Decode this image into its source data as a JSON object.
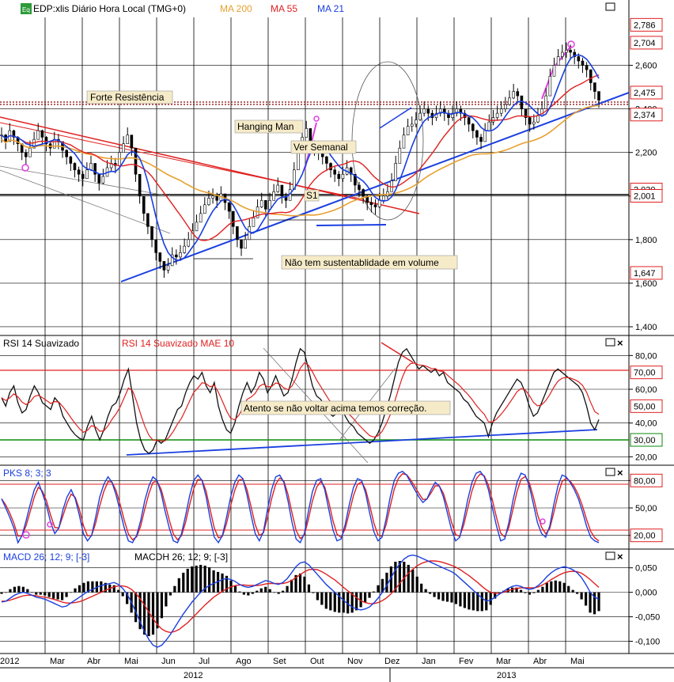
{
  "chart_data": [
    {
      "type": "line",
      "title": "EDP:xlis Diário Hora Local (TMG+0)",
      "badge": "Eq",
      "series": [
        {
          "name": "MA 200",
          "color": "#e8a030"
        },
        {
          "name": "MA 55",
          "color": "#e02020"
        },
        {
          "name": "MA 21",
          "color": "#1a3fe0"
        }
      ],
      "ylim": [
        1.36,
        2.82
      ],
      "y_ticks": [
        {
          "label": "1,400",
          "value": 1.4
        },
        {
          "label": "1,600",
          "value": 1.6
        },
        {
          "label": "1,800",
          "value": 1.8
        },
        {
          "label": "2,000",
          "value": 2.0
        },
        {
          "label": "2,200",
          "value": 2.2
        },
        {
          "label": "2,400",
          "value": 2.4
        },
        {
          "label": "2,600",
          "value": 2.6
        }
      ],
      "level_labels": [
        {
          "label": "2,786",
          "value": 2.786
        },
        {
          "label": "2,704",
          "value": 2.704
        },
        {
          "label": "2,475",
          "value": 2.475
        },
        {
          "label": "2,374",
          "value": 2.374
        },
        {
          "label": "2,030",
          "value": 2.03
        },
        {
          "label": "2,001",
          "value": 2.001
        },
        {
          "label": "1,647",
          "value": 1.647
        }
      ],
      "price": [
        2.28,
        2.25,
        2.3,
        2.27,
        2.24,
        2.2,
        2.18,
        2.22,
        2.26,
        2.3,
        2.27,
        2.24,
        2.22,
        2.26,
        2.25,
        2.21,
        2.18,
        2.15,
        2.12,
        2.1,
        2.08,
        2.12,
        2.15,
        2.1,
        2.06,
        2.09,
        2.13,
        2.15,
        2.14,
        2.2,
        2.24,
        2.28,
        2.22,
        2.1,
        2.0,
        1.92,
        1.86,
        1.8,
        1.74,
        1.7,
        1.66,
        1.68,
        1.73,
        1.72,
        1.74,
        1.77,
        1.8,
        1.84,
        1.88,
        1.92,
        1.96,
        1.99,
        2.0,
        1.98,
        2.01,
        1.97,
        1.93,
        1.86,
        1.8,
        1.76,
        1.8,
        1.86,
        1.9,
        1.95,
        1.98,
        1.94,
        1.98,
        2.02,
        2.05,
        2.0,
        1.98,
        2.03,
        2.12,
        2.2,
        2.27,
        2.31,
        2.25,
        2.22,
        2.2,
        2.18,
        2.15,
        2.12,
        2.1,
        2.08,
        2.1,
        2.13,
        2.1,
        2.05,
        2.03,
        2.0,
        1.97,
        1.96,
        1.95,
        1.98,
        2.0,
        2.02,
        2.07,
        2.15,
        2.22,
        2.28,
        2.32,
        2.33,
        2.35,
        2.38,
        2.4,
        2.38,
        2.36,
        2.38,
        2.4,
        2.38,
        2.36,
        2.38,
        2.4,
        2.38,
        2.36,
        2.33,
        2.3,
        2.27,
        2.25,
        2.3,
        2.34,
        2.36,
        2.38,
        2.4,
        2.42,
        2.45,
        2.48,
        2.46,
        2.4,
        2.36,
        2.33,
        2.34,
        2.37,
        2.4,
        2.46,
        2.55,
        2.6,
        2.64,
        2.66,
        2.67,
        2.66,
        2.64,
        2.62,
        2.6,
        2.58,
        2.52,
        2.48,
        2.44
      ],
      "annotations": [
        {
          "text": "Forte Resistência"
        },
        {
          "text": "Hanging Man"
        },
        {
          "text": "Ver Semanal"
        },
        {
          "text": "S1"
        },
        {
          "text": "Não tem sustentablidade em volume"
        }
      ]
    },
    {
      "type": "line",
      "title": "RSI 14 Suavizado",
      "series": [
        {
          "name": "RSI 14 Suavizado",
          "color": "#111111"
        },
        {
          "name": "RSI 14 Suavizado MAE 10",
          "color": "#e02020"
        }
      ],
      "ylim": [
        15,
        90
      ],
      "y_ticks": [
        {
          "label": "20,00",
          "value": 20
        },
        {
          "label": "40,00",
          "value": 40
        },
        {
          "label": "60,00",
          "value": 60
        },
        {
          "label": "80,00",
          "value": 80
        }
      ],
      "level_labels": [
        {
          "label": "70,00",
          "value": 70,
          "color": "#e02020"
        },
        {
          "label": "50,00",
          "value": 50,
          "color": "#e02020"
        },
        {
          "label": "30,00",
          "value": 30,
          "color": "#0a8a0a"
        }
      ],
      "rsi": [
        55,
        50,
        58,
        62,
        52,
        46,
        48,
        56,
        62,
        58,
        52,
        50,
        48,
        55,
        52,
        44,
        40,
        36,
        33,
        31,
        30,
        38,
        44,
        36,
        30,
        36,
        44,
        50,
        52,
        58,
        66,
        72,
        56,
        40,
        30,
        24,
        22,
        24,
        30,
        28,
        30,
        36,
        42,
        48,
        50,
        58,
        64,
        68,
        66,
        70,
        62,
        58,
        64,
        50,
        42,
        36,
        34,
        40,
        50,
        58,
        64,
        58,
        62,
        70,
        66,
        58,
        62,
        68,
        62,
        56,
        58,
        66,
        76,
        84,
        82,
        72,
        62,
        56,
        54,
        50,
        46,
        44,
        46,
        50,
        44,
        40,
        38,
        34,
        32,
        30,
        28,
        30,
        34,
        40,
        48,
        56,
        66,
        76,
        82,
        84,
        80,
        76,
        72,
        74,
        72,
        70,
        72,
        68,
        70,
        64,
        62,
        60,
        58,
        54,
        52,
        48,
        44,
        42,
        40,
        32,
        40,
        46,
        50,
        54,
        58,
        62,
        66,
        64,
        58,
        50,
        44,
        46,
        52,
        58,
        64,
        70,
        72,
        70,
        68,
        66,
        64,
        62,
        58,
        50,
        40,
        36,
        42
      ]
    },
    {
      "type": "line",
      "title": "PKS 8; 3; 3",
      "series": [
        {
          "name": "PKS 8; 3; 3",
          "color": "#1a3fe0"
        }
      ],
      "ylim": [
        5,
        95
      ],
      "y_ticks": [
        {
          "label": "20,00",
          "value": 20
        },
        {
          "label": "50,00",
          "value": 50
        },
        {
          "label": "80,00",
          "value": 80
        }
      ],
      "level_labels": [
        {
          "label": "80,00",
          "value": 80,
          "color": "#e02020"
        },
        {
          "label": "20,00",
          "value": 20,
          "color": "#e02020"
        }
      ],
      "pks": [
        60,
        50,
        40,
        28,
        12,
        20,
        36,
        54,
        70,
        78,
        66,
        52,
        34,
        22,
        28,
        48,
        62,
        70,
        60,
        42,
        22,
        14,
        20,
        40,
        62,
        76,
        84,
        78,
        64,
        46,
        28,
        14,
        12,
        20,
        36,
        58,
        74,
        84,
        80,
        66,
        46,
        28,
        14,
        12,
        22,
        42,
        64,
        80,
        86,
        80,
        62,
        38,
        18,
        12,
        20,
        40,
        62,
        78,
        86,
        82,
        64,
        42,
        22,
        14,
        24,
        48,
        70,
        84,
        86,
        78,
        58,
        34,
        16,
        12,
        22,
        46,
        68,
        80,
        82,
        70,
        48,
        26,
        14,
        16,
        32,
        54,
        72,
        82,
        80,
        66,
        44,
        24,
        14,
        18,
        38,
        62,
        80,
        88,
        90,
        86,
        78,
        70,
        62,
        56,
        60,
        70,
        78,
        74,
        62,
        44,
        26,
        14,
        18,
        38,
        60,
        78,
        88,
        90,
        84,
        70,
        50,
        30,
        14,
        16,
        34,
        58,
        78,
        88,
        86,
        74,
        54,
        34,
        22,
        18,
        30,
        54,
        74,
        86,
        84,
        78,
        70,
        60,
        46,
        30,
        18,
        14,
        12
      ]
    },
    {
      "type": "line",
      "title": "MACD 26; 12; 9; [-3]",
      "series": [
        {
          "name": "MACD 26; 12; 9; [-3]",
          "color": "#1a3fe0"
        },
        {
          "name": "MACDH 26; 12; 9; [-3]",
          "color": "#111111"
        }
      ],
      "ylim": [
        -0.125,
        0.085
      ],
      "y_ticks": [
        {
          "label": "-0,100",
          "value": -0.1
        },
        {
          "label": "-0,050",
          "value": -0.05
        },
        {
          "label": "0,000",
          "value": 0
        },
        {
          "label": "0,050",
          "value": 0.05
        }
      ],
      "macd": [
        -0.02,
        -0.018,
        -0.012,
        -0.006,
        -0.002,
        0.0,
        -0.002,
        -0.006,
        -0.01,
        -0.012,
        -0.014,
        -0.018,
        -0.022,
        -0.026,
        -0.03,
        -0.028,
        -0.022,
        -0.016,
        -0.01,
        -0.004,
        0.002,
        0.006,
        0.01,
        0.014,
        0.016,
        0.018,
        0.02,
        0.016,
        0.008,
        -0.004,
        -0.02,
        -0.04,
        -0.06,
        -0.08,
        -0.096,
        -0.108,
        -0.112,
        -0.108,
        -0.098,
        -0.086,
        -0.072,
        -0.058,
        -0.044,
        -0.032,
        -0.02,
        -0.01,
        0.0,
        0.008,
        0.014,
        0.018,
        0.022,
        0.026,
        0.028,
        0.026,
        0.022,
        0.016,
        0.012,
        0.01,
        0.012,
        0.016,
        0.02,
        0.024,
        0.022,
        0.018,
        0.016,
        0.02,
        0.028,
        0.04,
        0.052,
        0.06,
        0.062,
        0.056,
        0.046,
        0.036,
        0.026,
        0.016,
        0.008,
        0.0,
        -0.008,
        -0.016,
        -0.024,
        -0.03,
        -0.034,
        -0.036,
        -0.034,
        -0.03,
        -0.022,
        -0.012,
        0.0,
        0.014,
        0.03,
        0.046,
        0.058,
        0.068,
        0.074,
        0.076,
        0.074,
        0.07,
        0.066,
        0.062,
        0.058,
        0.054,
        0.05,
        0.046,
        0.042,
        0.036,
        0.028,
        0.02,
        0.012,
        0.004,
        -0.004,
        -0.012,
        -0.018,
        -0.016,
        -0.01,
        -0.004,
        0.002,
        0.008,
        0.012,
        0.014,
        0.012,
        0.008,
        0.006,
        0.008,
        0.014,
        0.022,
        0.032,
        0.04,
        0.046,
        0.05,
        0.052,
        0.05,
        0.046,
        0.04,
        0.03,
        0.016,
        0.0,
        -0.01,
        -0.014
      ],
      "signal": [
        -0.018,
        -0.018,
        -0.016,
        -0.013,
        -0.01,
        -0.007,
        -0.006,
        -0.006,
        -0.007,
        -0.009,
        -0.01,
        -0.012,
        -0.014,
        -0.017,
        -0.02,
        -0.022,
        -0.022,
        -0.021,
        -0.019,
        -0.016,
        -0.012,
        -0.008,
        -0.004,
        0.0,
        0.004,
        0.008,
        0.011,
        0.013,
        0.013,
        0.011,
        0.006,
        -0.002,
        -0.013,
        -0.026,
        -0.04,
        -0.054,
        -0.066,
        -0.075,
        -0.08,
        -0.082,
        -0.08,
        -0.076,
        -0.069,
        -0.062,
        -0.053,
        -0.044,
        -0.035,
        -0.026,
        -0.018,
        -0.01,
        -0.004,
        0.002,
        0.007,
        0.011,
        0.014,
        0.015,
        0.015,
        0.014,
        0.014,
        0.014,
        0.015,
        0.017,
        0.018,
        0.018,
        0.018,
        0.018,
        0.02,
        0.024,
        0.03,
        0.036,
        0.042,
        0.046,
        0.047,
        0.046,
        0.042,
        0.037,
        0.031,
        0.025,
        0.018,
        0.01,
        0.003,
        -0.004,
        -0.011,
        -0.017,
        -0.021,
        -0.023,
        -0.023,
        -0.021,
        -0.017,
        -0.011,
        -0.003,
        0.007,
        0.018,
        0.029,
        0.039,
        0.047,
        0.054,
        0.059,
        0.062,
        0.064,
        0.064,
        0.063,
        0.061,
        0.058,
        0.055,
        0.051,
        0.046,
        0.04,
        0.034,
        0.027,
        0.02,
        0.012,
        0.005,
        0.0,
        -0.002,
        -0.002,
        0.0,
        0.003,
        0.006,
        0.008,
        0.009,
        0.009,
        0.009,
        0.009,
        0.011,
        0.015,
        0.02,
        0.026,
        0.031,
        0.036,
        0.04,
        0.042,
        0.043,
        0.042,
        0.039,
        0.033,
        0.026,
        0.018,
        0.01
      ]
    }
  ],
  "x_axis": {
    "months": [
      "2012",
      "Mar",
      "Abr",
      "Mai",
      "Jun",
      "Jul",
      "Ago",
      "Set",
      "Out",
      "Nov",
      "Dez",
      "Jan",
      "Fev",
      "Mar",
      "Abr",
      "Mai"
    ],
    "years": [
      "2012",
      "2013"
    ]
  },
  "rsi_annotation": "Atento se não voltar acima temos correção."
}
